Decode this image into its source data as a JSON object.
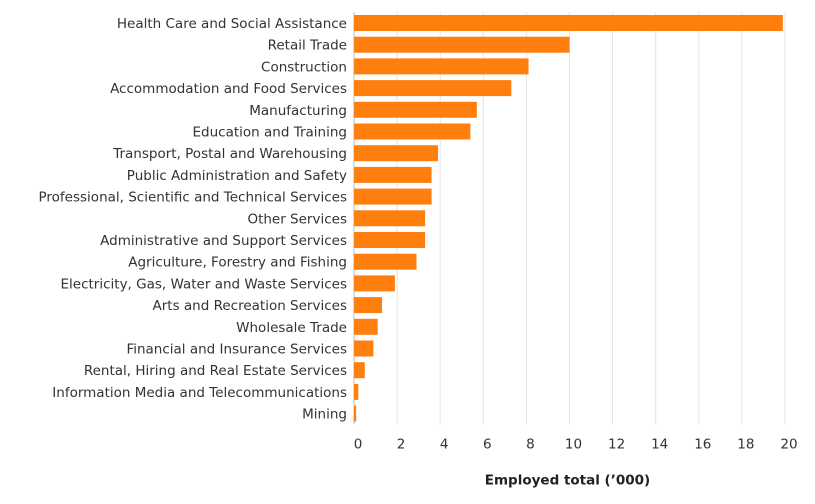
{
  "chart_data": {
    "type": "bar",
    "orientation": "horizontal",
    "title": "",
    "xlabel": "Employed total (’000)",
    "ylabel": "",
    "xlim": [
      0,
      20
    ],
    "x_ticks": [
      0,
      2,
      4,
      6,
      8,
      10,
      12,
      14,
      16,
      18,
      20
    ],
    "grid": true,
    "bar_color": "#ff7f0e",
    "categories": [
      "Health Care and Social Assistance",
      "Retail Trade",
      "Construction",
      "Accommodation and Food Services",
      "Manufacturing",
      "Education and Training",
      "Transport, Postal and Warehousing",
      "Public Administration and Safety",
      "Professional, Scientific and Technical Services",
      "Other Services",
      "Administrative and Support Services",
      "Agriculture, Forestry and Fishing",
      "Electricity, Gas, Water and Waste Services",
      "Arts and Recreation Services",
      "Wholesale Trade",
      "Financial and Insurance Services",
      "Rental, Hiring and Real Estate Services",
      "Information Media and Telecommunications",
      "Mining"
    ],
    "values": [
      19.9,
      10.0,
      8.1,
      7.3,
      5.7,
      5.4,
      3.9,
      3.6,
      3.6,
      3.3,
      3.3,
      2.9,
      1.9,
      1.3,
      1.1,
      0.9,
      0.5,
      0.2,
      0.1
    ]
  }
}
